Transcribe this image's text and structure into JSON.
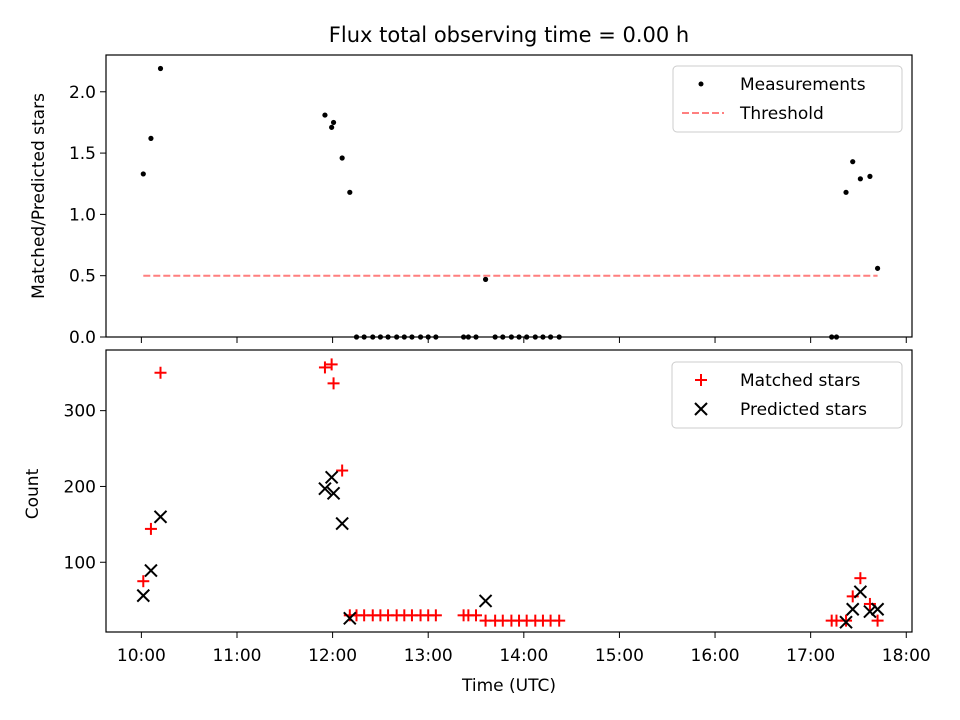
{
  "chart_data": [
    {
      "type": "scatter",
      "title": "Flux total observing time = 0.00 h",
      "ylabel": "Matched/Predicted stars",
      "xlabel": "",
      "xlim": [
        9.63,
        18.06
      ],
      "ylim": [
        0,
        2.3
      ],
      "y_ticks": [
        0.0,
        0.5,
        1.0,
        1.5,
        2.0
      ],
      "y_tick_labels": [
        "0.0",
        "0.5",
        "1.0",
        "1.5",
        "2.0"
      ],
      "legend": {
        "position": "top-right",
        "entries": [
          "Measurements",
          "Threshold"
        ]
      },
      "series": [
        {
          "name": "Measurements",
          "marker": "dot",
          "color": "#000000",
          "x": [
            10.02,
            10.1,
            10.2,
            11.92,
            11.99,
            12.01,
            12.1,
            12.18,
            12.25,
            12.33,
            12.42,
            12.5,
            12.58,
            12.67,
            12.75,
            12.83,
            12.92,
            13.0,
            13.08,
            13.37,
            13.42,
            13.5,
            13.6,
            13.7,
            13.78,
            13.87,
            13.95,
            14.03,
            14.12,
            14.2,
            14.28,
            14.37,
            17.22,
            17.27,
            17.37,
            17.44,
            17.52,
            17.62,
            17.7
          ],
          "y": [
            1.33,
            1.62,
            2.19,
            1.81,
            1.71,
            1.75,
            1.46,
            1.18,
            0,
            0,
            0,
            0,
            0,
            0,
            0,
            0,
            0,
            0,
            0,
            0,
            0,
            0,
            0.47,
            0,
            0,
            0,
            0,
            0,
            0,
            0,
            0,
            0,
            0,
            0,
            1.18,
            1.43,
            1.29,
            1.31,
            0.56
          ]
        },
        {
          "name": "Threshold",
          "style": "dashed",
          "color": "#ff7f7f",
          "x": [
            10.02,
            17.7
          ],
          "y": [
            0.5,
            0.5
          ]
        }
      ]
    },
    {
      "type": "scatter",
      "title": "",
      "ylabel": "Count",
      "xlabel": "Time (UTC)",
      "xlim": [
        9.63,
        18.06
      ],
      "ylim": [
        8,
        380
      ],
      "y_ticks": [
        100,
        200,
        300
      ],
      "y_tick_labels": [
        "100",
        "200",
        "300"
      ],
      "x_ticks": [
        10,
        11,
        12,
        13,
        14,
        15,
        16,
        17,
        18
      ],
      "x_tick_labels": [
        "10:00",
        "11:00",
        "12:00",
        "13:00",
        "14:00",
        "15:00",
        "16:00",
        "17:00",
        "18:00"
      ],
      "legend": {
        "position": "top-right",
        "entries": [
          "Matched stars",
          "Predicted stars"
        ]
      },
      "series": [
        {
          "name": "Matched stars",
          "marker": "plus",
          "color": "#ff0000",
          "x": [
            10.02,
            10.1,
            10.2,
            11.92,
            11.99,
            12.01,
            12.1,
            12.18,
            12.25,
            12.33,
            12.42,
            12.5,
            12.58,
            12.67,
            12.75,
            12.83,
            12.92,
            13.0,
            13.08,
            13.37,
            13.42,
            13.5,
            13.6,
            13.7,
            13.78,
            13.87,
            13.95,
            14.03,
            14.12,
            14.2,
            14.28,
            14.37,
            17.22,
            17.27,
            17.37,
            17.44,
            17.52,
            17.62,
            17.7
          ],
          "y": [
            75,
            144,
            350,
            357,
            361,
            336,
            221,
            30,
            30,
            30,
            30,
            30,
            30,
            30,
            30,
            30,
            30,
            30,
            30,
            30,
            30,
            30,
            23,
            23,
            23,
            23,
            23,
            23,
            23,
            23,
            23,
            23,
            23,
            23,
            23,
            55,
            79,
            45,
            23
          ]
        },
        {
          "name": "Predicted stars",
          "marker": "x",
          "color": "#000000",
          "x": [
            10.02,
            10.1,
            10.2,
            11.92,
            11.99,
            12.01,
            12.1,
            12.18,
            13.6,
            17.37,
            17.44,
            17.52,
            17.62,
            17.7
          ],
          "y": [
            56,
            89,
            160,
            197,
            212,
            191,
            151,
            26,
            49,
            21,
            38,
            61,
            35,
            38
          ]
        }
      ]
    }
  ]
}
